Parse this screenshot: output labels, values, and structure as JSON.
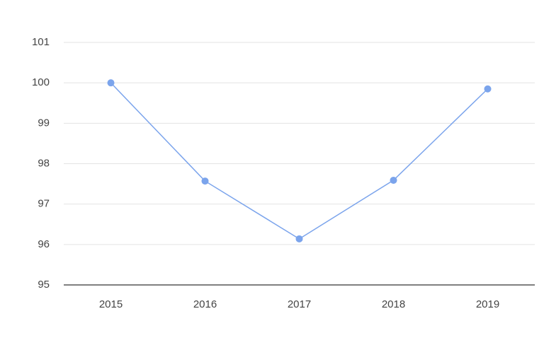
{
  "chart_data": {
    "type": "line",
    "categories": [
      "2015",
      "2016",
      "2017",
      "2018",
      "2019"
    ],
    "values": [
      100,
      97.57,
      96.14,
      97.59,
      99.85
    ],
    "color": "#7ba4ec",
    "ylim": [
      95,
      101
    ],
    "yticks": [
      95,
      96,
      97,
      98,
      99,
      100,
      101
    ],
    "grid": true
  }
}
